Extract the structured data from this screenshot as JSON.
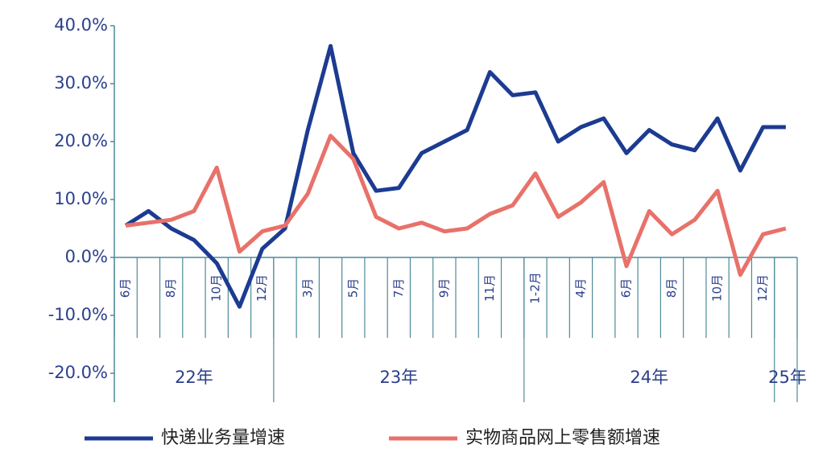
{
  "chart_data": {
    "type": "line",
    "categories": [
      "6月",
      null,
      "8月",
      null,
      "10月",
      null,
      "12月",
      null,
      "3月",
      null,
      "5月",
      null,
      "7月",
      null,
      "9月",
      null,
      "11月",
      null,
      "1-2月",
      null,
      "4月",
      null,
      "6月",
      null,
      "8月",
      null,
      "10月",
      null,
      "12月",
      null
    ],
    "x_groups": [
      "22年",
      "23年",
      "24年",
      "25年"
    ],
    "series": [
      {
        "name": "快递业务量增速",
        "color": "#1c3b91",
        "values": [
          5.5,
          8,
          5,
          3,
          -1,
          -8.5,
          1.5,
          5,
          22,
          36.5,
          18,
          11.5,
          12,
          18,
          20,
          22,
          32,
          28,
          28.5,
          20,
          22.5,
          24,
          18,
          22,
          19.5,
          18.5,
          24,
          15,
          22.5,
          22.5
        ]
      },
      {
        "name": "实物商品网上零售额增速",
        "color": "#e8716a",
        "values": [
          5.5,
          6,
          6.5,
          8,
          15.5,
          1,
          4.5,
          5.5,
          11,
          21,
          17,
          7,
          5,
          6,
          4.5,
          5,
          7.5,
          9,
          14.5,
          7,
          9.5,
          13,
          -1.5,
          8,
          4,
          6.5,
          11.5,
          -3,
          4,
          5
        ]
      }
    ],
    "ylim": [
      -20,
      40
    ],
    "yticks": [
      {
        "value": -20,
        "label": "-20.0%"
      },
      {
        "value": -10,
        "label": "-10.0%"
      },
      {
        "value": 0,
        "label": "0.0%"
      },
      {
        "value": 10,
        "label": "10.0%"
      },
      {
        "value": 20,
        "label": "20.0%"
      },
      {
        "value": 30,
        "label": "30.0%"
      },
      {
        "value": 40,
        "label": "40.0%"
      }
    ],
    "legend": "bottom"
  }
}
